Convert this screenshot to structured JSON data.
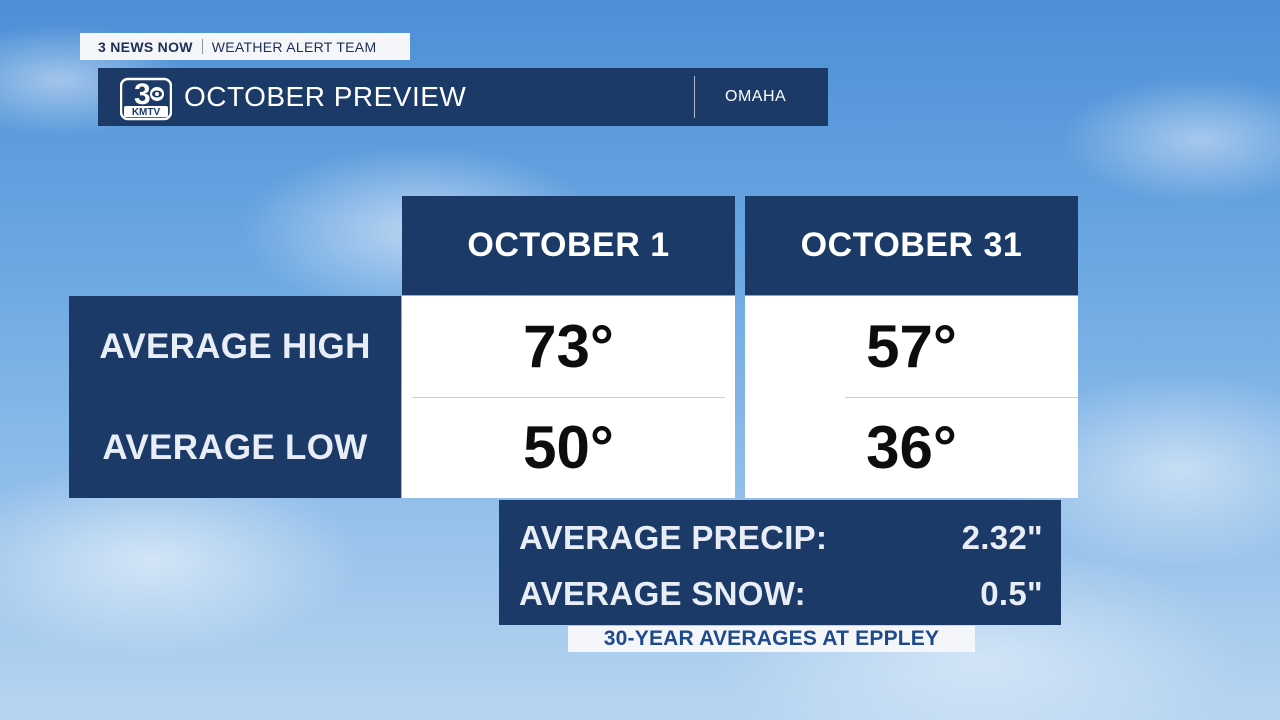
{
  "header": {
    "brand": "3 NEWS NOW",
    "team": "WEATHER ALERT TEAM",
    "logo_text": "KMTV",
    "logo_number": "3",
    "title": "OCTOBER PREVIEW",
    "location": "OMAHA"
  },
  "table": {
    "columns": [
      "OCTOBER 1",
      "OCTOBER 31"
    ],
    "rows": [
      {
        "label": "AVERAGE HIGH",
        "values": [
          "73°",
          "57°"
        ]
      },
      {
        "label": "AVERAGE LOW",
        "values": [
          "50°",
          "36°"
        ]
      }
    ]
  },
  "precip": {
    "rows": [
      {
        "label": "AVERAGE PRECIP:",
        "value": "2.32\""
      },
      {
        "label": "AVERAGE SNOW:",
        "value": "0.5\""
      }
    ]
  },
  "footnote": "30-YEAR AVERAGES AT EPPLEY",
  "colors": {
    "panel": "#1c3a68",
    "cell": "#ffffff",
    "footnote_text": "#1d4a8c"
  }
}
